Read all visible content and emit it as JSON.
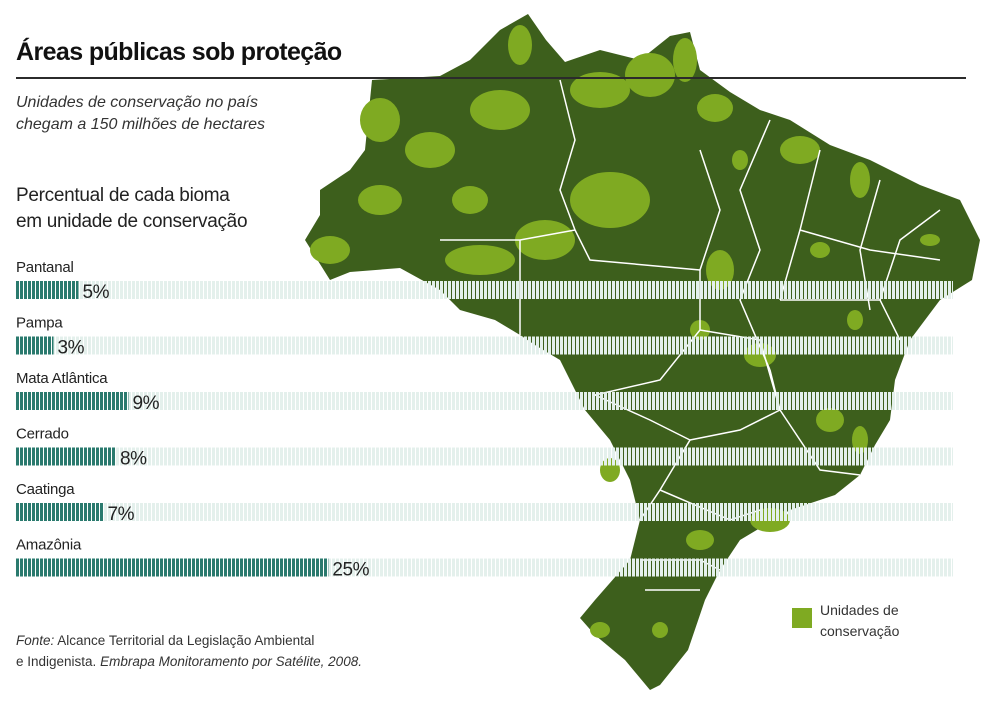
{
  "title": "Áreas públicas sob proteção",
  "subtitle": [
    "Unidades de conservação no país",
    "chegam a 150 milhões de hectares"
  ],
  "chart_title": [
    "Percentual de cada bioma",
    "em unidade de conservação"
  ],
  "colors": {
    "bar": "#2a7a6e",
    "track": "#e4f0ec",
    "map_land": "#3d5f1c",
    "map_conservation": "#7faa22",
    "map_border": "#ffffff"
  },
  "chart_data": {
    "type": "bar",
    "orientation": "horizontal",
    "title": "Percentual de cada bioma em unidade de conservação",
    "categories": [
      "Pantanal",
      "Pampa",
      "Mata Atlântica",
      "Cerrado",
      "Caatinga",
      "Amazônia"
    ],
    "values": [
      5,
      3,
      9,
      8,
      7,
      25
    ],
    "value_labels": [
      "5%",
      "3%",
      "9%",
      "8%",
      "7%",
      "25%"
    ],
    "xlim": [
      0,
      75
    ],
    "unit": "%"
  },
  "legend": {
    "label_lines": [
      "Unidades de",
      "conservação"
    ]
  },
  "source": {
    "prefix": "Fonte:",
    "line1_rest": " Alcance Territorial da Legislação Ambiental",
    "line2_plain": "e Indigenista. ",
    "line2_italic": "Embrapa Monitoramento por Satélite, 2008."
  }
}
